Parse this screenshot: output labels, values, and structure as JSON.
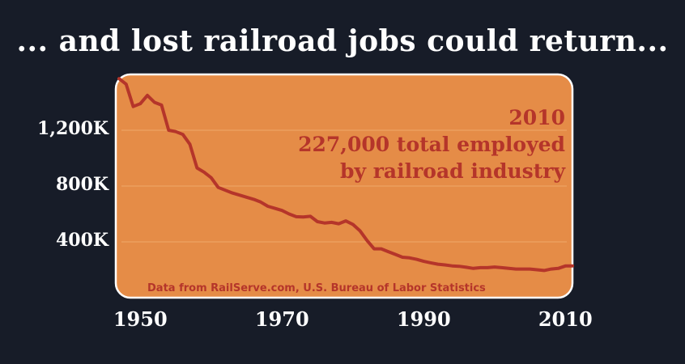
{
  "title": "... and lost railroad jobs could return...",
  "chart_data": {
    "type": "line",
    "title": "... and lost railroad jobs could return...",
    "xlabel": "",
    "ylabel": "",
    "xlim": [
      1947,
      2011
    ],
    "ylim": [
      0,
      1600
    ],
    "x_ticks": [
      1950,
      1970,
      1990,
      2010
    ],
    "x_tick_labels": [
      "1950",
      "1970",
      "1990",
      "2010"
    ],
    "y_ticks": [
      400,
      800,
      1200
    ],
    "y_tick_labels": [
      "400K",
      "800K",
      "1,200K"
    ],
    "grid": true,
    "background_color": "#e58c47",
    "line_color": "#b5352a",
    "annotation": [
      "2010",
      "227,000 total employed",
      "by railroad industry"
    ],
    "source": "Data from RailServe.com, U.S. Bureau of Labor Statistics",
    "series": [
      {
        "x": [
          1947,
          1948,
          1949,
          1950,
          1951,
          1952,
          1953,
          1954,
          1955,
          1956,
          1957,
          1958,
          1959,
          1960,
          1961,
          1962,
          1963,
          1964,
          1965,
          1966,
          1967,
          1968,
          1969,
          1970,
          1971,
          1972,
          1973,
          1974,
          1975,
          1976,
          1977,
          1978,
          1979,
          1980,
          1981,
          1982,
          1983,
          1984,
          1985,
          1986,
          1987,
          1988,
          1989,
          1990,
          1991,
          1992,
          1993,
          1994,
          1995,
          1996,
          1997,
          1998,
          1999,
          2000,
          2001,
          2002,
          2003,
          2004,
          2005,
          2006,
          2007,
          2008,
          2009,
          2010,
          2011
        ],
        "values": [
          1570,
          1530,
          1370,
          1390,
          1450,
          1400,
          1380,
          1200,
          1190,
          1170,
          1100,
          930,
          900,
          860,
          790,
          770,
          750,
          735,
          720,
          705,
          685,
          655,
          640,
          625,
          600,
          580,
          578,
          583,
          545,
          535,
          540,
          530,
          550,
          525,
          480,
          410,
          350,
          350,
          330,
          310,
          290,
          285,
          275,
          260,
          250,
          240,
          235,
          228,
          225,
          218,
          210,
          215,
          215,
          220,
          215,
          210,
          205,
          205,
          205,
          200,
          195,
          205,
          210,
          227,
          227
        ]
      }
    ]
  }
}
